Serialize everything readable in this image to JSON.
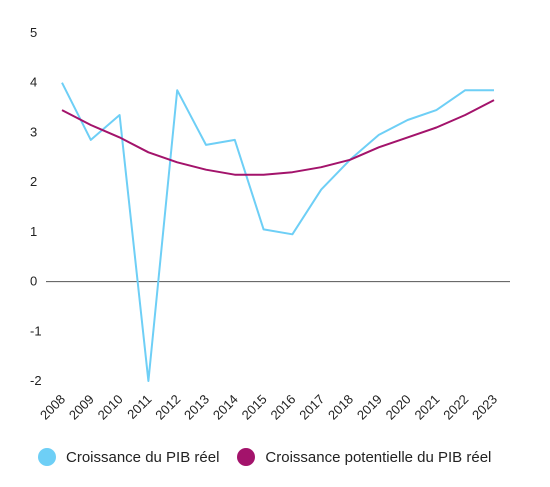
{
  "chart_data": {
    "type": "line",
    "title": "",
    "xlabel": "",
    "ylabel": "",
    "x": [
      "2008",
      "2009",
      "2010",
      "2011",
      "2012",
      "2013",
      "2014",
      "2015",
      "2016",
      "2017",
      "2018",
      "2019",
      "2020",
      "2021",
      "2022",
      "2023"
    ],
    "y_ticks": [
      "5",
      "4",
      "3",
      "2",
      "1",
      "0",
      "-1",
      "-2"
    ],
    "ylim": [
      -2,
      5
    ],
    "grid": false,
    "legend_position": "bottom",
    "series": [
      {
        "name": "Croissance du PIB réel",
        "color": "#6ecff6",
        "values": [
          4.0,
          2.85,
          3.35,
          -2.0,
          3.85,
          2.75,
          2.85,
          1.05,
          0.95,
          1.85,
          2.45,
          2.95,
          3.25,
          3.45,
          3.85,
          3.85
        ]
      },
      {
        "name": "Croissance potentielle du PIB réel",
        "color": "#a3136b",
        "values": [
          3.45,
          3.15,
          2.9,
          2.6,
          2.4,
          2.25,
          2.15,
          2.15,
          2.2,
          2.3,
          2.45,
          2.7,
          2.9,
          3.1,
          3.35,
          3.65
        ]
      }
    ],
    "zero_line_color": "#555555"
  }
}
